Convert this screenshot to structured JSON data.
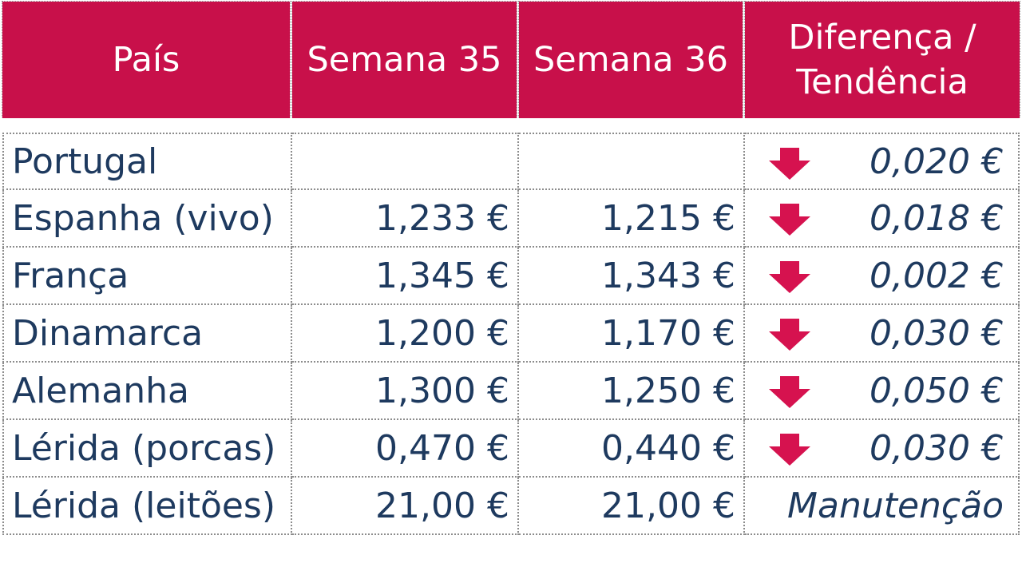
{
  "header": {
    "pais": "País",
    "semana35": "Semana 35",
    "semana36": "Semana 36",
    "diferenca_line1": "Diferença /",
    "diferenca_line2": "Tendência"
  },
  "colors": {
    "header_bg": "#c8104a",
    "header_text": "#ffffff",
    "body_text": "#1e3a5f",
    "arrow": "#d6124f"
  },
  "rows": [
    {
      "pais": "Portugal",
      "semana35": "",
      "semana36": "",
      "trend": "down-arrow-icon",
      "diferenca": "0,020 €"
    },
    {
      "pais": "Espanha (vivo)",
      "semana35": "1,233 €",
      "semana36": "1,215 €",
      "trend": "down-arrow-icon",
      "diferenca": "0,018 €"
    },
    {
      "pais": "França",
      "semana35": "1,345 €",
      "semana36": "1,343 €",
      "trend": "down-arrow-icon",
      "diferenca": "0,002 €"
    },
    {
      "pais": "Dinamarca",
      "semana35": "1,200 €",
      "semana36": "1,170 €",
      "trend": "down-arrow-icon",
      "diferenca": "0,030 €"
    },
    {
      "pais": "Alemanha",
      "semana35": "1,300 €",
      "semana36": "1,250 €",
      "trend": "down-arrow-icon",
      "diferenca": "0,050 €"
    },
    {
      "pais": "Lérida (porcas)",
      "semana35": "0,470 €",
      "semana36": "0,440 €",
      "trend": "down-arrow-icon",
      "diferenca": "0,030 €"
    },
    {
      "pais": "Lérida (leitões)",
      "semana35": "21,00 €",
      "semana36": "21,00 €",
      "trend": "none",
      "diferenca": "Manutenção"
    }
  ]
}
